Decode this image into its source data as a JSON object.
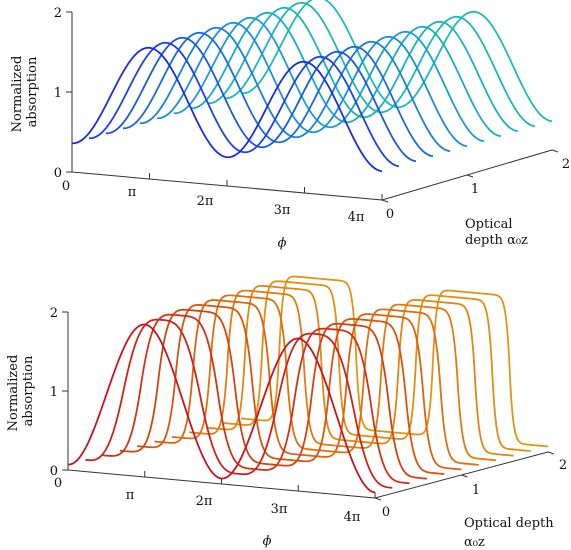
{
  "chart_data": [
    {
      "type": "line",
      "projection": "3d-waterfall",
      "ylabel_lines": [
        "Normalized",
        "absorption"
      ],
      "ytick_labels": [
        "0",
        "1",
        "2"
      ],
      "ylim": [
        0,
        2
      ],
      "xlabel": "ϕ",
      "xtick_labels": [
        "0",
        "π",
        "2π",
        "3π",
        "4π"
      ],
      "xlim_rad": [
        0,
        12.566
      ],
      "zlabel_lines": [
        "Optical",
        "depth α₀z"
      ],
      "ztick_labels": [
        "0",
        "1",
        "2"
      ],
      "zlim": [
        0,
        2
      ],
      "curve_model": {
        "baseline": 1,
        "amplitude": 0.64,
        "depth_sharpening": 0
      },
      "series": [
        {
          "depth": 0.0,
          "color": "#1a2ee0"
        },
        {
          "depth": 0.2,
          "color": "#1a44e0"
        },
        {
          "depth": 0.4,
          "color": "#1a58de"
        },
        {
          "depth": 0.6,
          "color": "#1a6cdc"
        },
        {
          "depth": 0.8,
          "color": "#1a80da"
        },
        {
          "depth": 1.0,
          "color": "#1a90d4"
        },
        {
          "depth": 1.2,
          "color": "#1a9ece"
        },
        {
          "depth": 1.4,
          "color": "#1aaac8"
        },
        {
          "depth": 1.6,
          "color": "#1ab2c2"
        },
        {
          "depth": 1.8,
          "color": "#1ab8bc"
        },
        {
          "depth": 2.0,
          "color": "#1abcb8"
        }
      ]
    },
    {
      "type": "line",
      "projection": "3d-waterfall",
      "ylabel_lines": [
        "Normalized",
        "absorption"
      ],
      "ytick_labels": [
        "0",
        "1",
        "2"
      ],
      "ylim": [
        0,
        2
      ],
      "xlabel": "ϕ",
      "xtick_labels": [
        "0",
        "π",
        "2π",
        "3π",
        "4π"
      ],
      "xlim_rad": [
        0,
        12.566
      ],
      "zlabel_lines": [
        "Optical depth",
        "α₀z"
      ],
      "ztick_labels": [
        "0",
        "1",
        "2"
      ],
      "zlim": [
        0,
        2
      ],
      "curve_model": {
        "baseline": 1,
        "amplitude": 0.93,
        "depth_sharpening": 3.2
      },
      "series": [
        {
          "depth": 0.0,
          "color": "#c8141c"
        },
        {
          "depth": 0.2,
          "color": "#cc2418"
        },
        {
          "depth": 0.4,
          "color": "#d03414"
        },
        {
          "depth": 0.6,
          "color": "#d44412"
        },
        {
          "depth": 0.8,
          "color": "#d85410"
        },
        {
          "depth": 1.0,
          "color": "#dc620e"
        },
        {
          "depth": 1.2,
          "color": "#de700e"
        },
        {
          "depth": 1.4,
          "color": "#e07c10"
        },
        {
          "depth": 1.6,
          "color": "#e08612"
        },
        {
          "depth": 1.8,
          "color": "#e08e14"
        },
        {
          "depth": 2.0,
          "color": "#e09416"
        }
      ]
    }
  ]
}
